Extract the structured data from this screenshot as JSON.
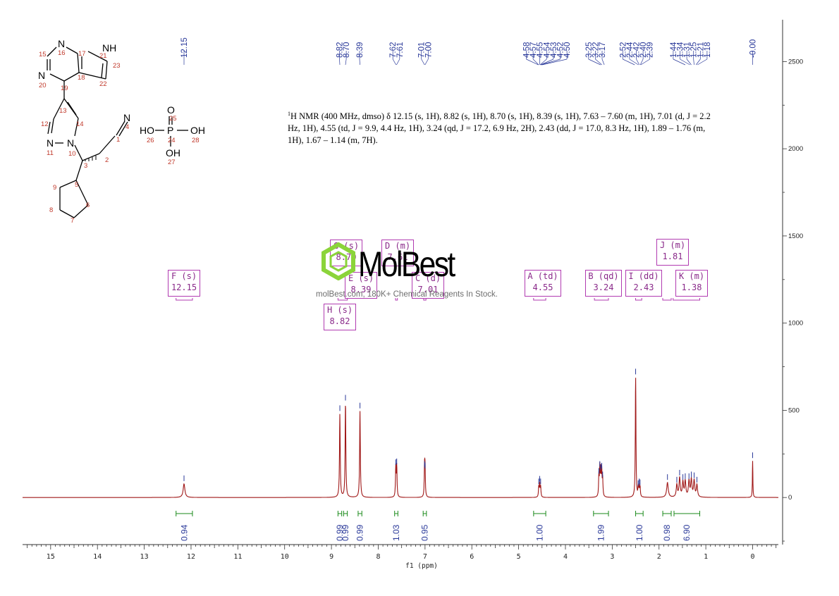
{
  "nmr_description": {
    "prefix_sup": "1",
    "text": "H NMR (400 MHz, dmso) δ 12.15 (s, 1H), 8.82 (s, 1H), 8.70 (s, 1H), 8.39 (s, 1H), 7.63 – 7.60 (m, 1H), 7.01 (d, J = 2.2 Hz, 1H), 4.55 (td, J = 9.9, 4.4 Hz, 1H), 3.24 (qd, J = 17.2, 6.9 Hz, 2H), 2.43 (dd, J = 17.0, 8.3 Hz, 1H), 1.89 – 1.76 (m, 1H), 1.67 – 1.14 (m, 7H)."
  },
  "watermark": {
    "name": "MolBest",
    "tagline": "molBest.com, 180K+ Chemical Reagents In Stock."
  },
  "colors": {
    "spectrum": "#a01818",
    "peak_labels": "#2b3a9a",
    "integrals": "#1a8a1a",
    "multiplets": "#b13bb1",
    "axis": "#333333",
    "structure_numbers": "#c0392b"
  },
  "multiplets": [
    {
      "label": "F (s)",
      "value": "12.15"
    },
    {
      "label": "G (s)",
      "value": "8.70"
    },
    {
      "label": "E (s)",
      "value": "8.39"
    },
    {
      "label": "H (s)",
      "value": "8.82"
    },
    {
      "label": "D (m)",
      "value": "7.61"
    },
    {
      "label": "C (d)",
      "value": "7.01"
    },
    {
      "label": "A (td)",
      "value": "4.55"
    },
    {
      "label": "B (qd)",
      "value": "3.24"
    },
    {
      "label": "I (dd)",
      "value": "2.43"
    },
    {
      "label": "J (m)",
      "value": "1.81"
    },
    {
      "label": "K (m)",
      "value": "1.38"
    }
  ],
  "structure": {
    "atoms": [
      "N",
      "NH",
      "N",
      "N",
      "N",
      "N",
      "O",
      "HO",
      "P",
      "OH",
      "OH"
    ],
    "numbers": [
      "15",
      "16",
      "17",
      "21",
      "23",
      "22",
      "18",
      "20",
      "19",
      "13",
      "12",
      "14",
      "11",
      "10",
      "3",
      "2",
      "1",
      "4",
      "9",
      "5",
      "6",
      "8",
      "7",
      "25",
      "24",
      "26",
      "28",
      "27"
    ]
  },
  "chart_data": {
    "type": "line",
    "title": "",
    "xlabel": "f1 (ppm)",
    "ylabel": "",
    "xlim": [
      15.6,
      -0.55
    ],
    "ylim": [
      -270,
      2740
    ],
    "x_ticks": [
      "15",
      "14",
      "13",
      "12",
      "11",
      "10",
      "9",
      "8",
      "7",
      "6",
      "5",
      "4",
      "3",
      "2",
      "1",
      "0"
    ],
    "y_ticks": [
      "2500",
      "2000",
      "1500",
      "1000",
      "500",
      "0"
    ],
    "peak_labels": [
      "12.15",
      "8.82",
      "8.70",
      "8.39",
      "7.62",
      "7.61",
      "7.01",
      "7.00",
      "4.58",
      "4.57",
      "4.55",
      "4.54",
      "4.53",
      "4.52",
      "4.50",
      "3.25",
      "3.22",
      "3.17",
      "2.52",
      "2.44",
      "2.42",
      "2.40",
      "2.39",
      "1.44",
      "1.34",
      "1.31",
      "1.25",
      "1.21",
      "1.18",
      "-0.00"
    ],
    "peaks": [
      {
        "ppm": 12.15,
        "height": 78,
        "width": 0.022
      },
      {
        "ppm": 8.82,
        "height": 480,
        "width": 0.009
      },
      {
        "ppm": 8.7,
        "height": 540,
        "width": 0.009
      },
      {
        "ppm": 8.39,
        "height": 495,
        "width": 0.009
      },
      {
        "ppm": 7.625,
        "height": 170,
        "width": 0.008
      },
      {
        "ppm": 7.605,
        "height": 175,
        "width": 0.008
      },
      {
        "ppm": 7.01,
        "height": 160,
        "width": 0.008
      },
      {
        "ppm": 7.0,
        "height": 150,
        "width": 0.008
      },
      {
        "ppm": 4.57,
        "height": 60,
        "width": 0.008
      },
      {
        "ppm": 4.55,
        "height": 75,
        "width": 0.008
      },
      {
        "ppm": 4.53,
        "height": 60,
        "width": 0.008
      },
      {
        "ppm": 3.285,
        "height": 120,
        "width": 0.008
      },
      {
        "ppm": 3.265,
        "height": 160,
        "width": 0.008
      },
      {
        "ppm": 3.245,
        "height": 140,
        "width": 0.008
      },
      {
        "ppm": 3.225,
        "height": 150,
        "width": 0.008
      },
      {
        "ppm": 3.205,
        "height": 100,
        "width": 0.008
      },
      {
        "ppm": 2.5,
        "height": 690,
        "width": 0.008
      },
      {
        "ppm": 2.445,
        "height": 50,
        "width": 0.008
      },
      {
        "ppm": 2.425,
        "height": 60,
        "width": 0.008
      },
      {
        "ppm": 2.405,
        "height": 55,
        "width": 0.008
      },
      {
        "ppm": 1.82,
        "height": 85,
        "width": 0.02
      },
      {
        "ppm": 1.62,
        "height": 70,
        "width": 0.015
      },
      {
        "ppm": 1.56,
        "height": 110,
        "width": 0.015
      },
      {
        "ppm": 1.49,
        "height": 85,
        "width": 0.015
      },
      {
        "ppm": 1.44,
        "height": 90,
        "width": 0.015
      },
      {
        "ppm": 1.36,
        "height": 90,
        "width": 0.015
      },
      {
        "ppm": 1.31,
        "height": 100,
        "width": 0.015
      },
      {
        "ppm": 1.25,
        "height": 95,
        "width": 0.015
      },
      {
        "ppm": 1.19,
        "height": 70,
        "width": 0.015
      },
      {
        "ppm": 0.0,
        "height": 210,
        "width": 0.006
      }
    ],
    "integrals": [
      {
        "value": "0.94",
        "from": 12.32,
        "to": 11.97
      },
      {
        "value": "0.99",
        "from": 8.86,
        "to": 8.78
      },
      {
        "value": "0.99",
        "from": 8.74,
        "to": 8.66
      },
      {
        "value": "0.99",
        "from": 8.43,
        "to": 8.35
      },
      {
        "value": "1.03",
        "from": 7.65,
        "to": 7.58
      },
      {
        "value": "0.95",
        "from": 7.04,
        "to": 6.97
      },
      {
        "value": "1.00",
        "from": 4.68,
        "to": 4.42
      },
      {
        "value": "1.99",
        "from": 3.4,
        "to": 3.08
      },
      {
        "value": "1.00",
        "from": 2.5,
        "to": 2.34
      },
      {
        "value": "0.98",
        "from": 1.92,
        "to": 1.74
      },
      {
        "value": "6.90",
        "from": 1.68,
        "to": 1.13
      }
    ]
  }
}
